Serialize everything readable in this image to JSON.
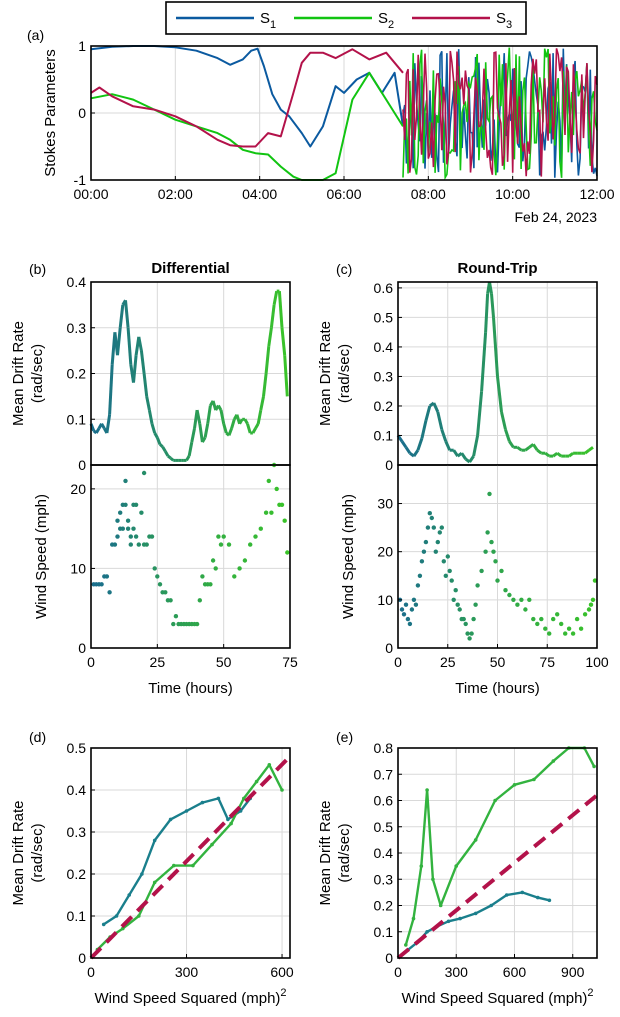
{
  "colors": {
    "s1": "#0b5aa0",
    "s2": "#11c411",
    "s3": "#b3124a",
    "teal": "#1a7f8c",
    "greenish": "#33b33f",
    "fit": "#b3124a",
    "grid": "#d9d9d9"
  },
  "chart_data": [
    {
      "panel_label": "(a)",
      "type": "line",
      "ylabel": "Stokes Parameters",
      "ylim": [
        -1,
        1
      ],
      "yticks": [
        "-1",
        "0",
        "1"
      ],
      "xticks": [
        "00:00",
        "02:00",
        "04:00",
        "06:00",
        "08:00",
        "10:00",
        "12:00"
      ],
      "xnote": "Feb 24, 2023",
      "grid": true,
      "legend": {
        "placement": "top-outside",
        "entries": [
          "S1",
          "S2",
          "S3"
        ],
        "display": [
          [
            "S",
            "1"
          ],
          [
            "S",
            "2"
          ],
          [
            "S",
            "3"
          ]
        ]
      },
      "series": [
        {
          "name": "S1",
          "x": [
            0,
            0.5,
            1,
            1.5,
            2,
            2.5,
            3,
            3.3,
            3.6,
            3.8,
            3.95,
            4.1,
            4.3,
            4.5,
            4.7,
            5,
            5.2,
            5.5,
            5.8,
            6,
            6.3,
            6.6,
            6.9,
            7.2,
            7.4
          ],
          "values": [
            0.95,
            0.99,
            1.0,
            1.0,
            0.98,
            0.93,
            0.82,
            0.72,
            0.8,
            0.93,
            0.96,
            0.7,
            0.28,
            0.05,
            -0.05,
            -0.3,
            -0.5,
            -0.2,
            0.4,
            0.3,
            0.5,
            0.6,
            0.3,
            0.6,
            -0.2
          ]
        },
        {
          "name": "S2",
          "x": [
            0,
            0.5,
            1,
            1.5,
            2,
            2.5,
            3,
            3.3,
            3.6,
            3.9,
            4.2,
            4.5,
            4.8,
            5.0,
            5.2,
            5.5,
            5.8,
            6.2,
            6.6,
            7.0,
            7.4
          ],
          "values": [
            0.22,
            0.28,
            0.2,
            0.05,
            -0.1,
            -0.2,
            -0.3,
            -0.4,
            -0.55,
            -0.6,
            -0.62,
            -0.8,
            -0.95,
            -1.0,
            -1.0,
            -1.0,
            -0.9,
            0.2,
            0.6,
            0.2,
            -0.2
          ]
        },
        {
          "name": "S3",
          "x": [
            0,
            0.2,
            0.5,
            1,
            1.5,
            2,
            2.5,
            3,
            3.3,
            3.6,
            3.9,
            4.2,
            4.5,
            4.8,
            5.0,
            5.2,
            5.5,
            5.8,
            6.2,
            6.6,
            7.0,
            7.4
          ],
          "values": [
            0.3,
            0.38,
            0.25,
            0.1,
            0.05,
            -0.05,
            -0.2,
            -0.4,
            -0.48,
            -0.5,
            -0.5,
            -0.3,
            -0.35,
            0.3,
            0.75,
            0.9,
            0.9,
            0.82,
            0.95,
            0.8,
            0.9,
            0.6
          ]
        }
      ],
      "noisy_segment": {
        "x_start": 7.4,
        "x_end": 12,
        "note": "rapid oscillations of all three parameters between -1 and 1"
      }
    },
    {
      "panel_label": "(b)",
      "type": "line",
      "title": "Differential",
      "ylabel": "Mean Drift Rate (rad/sec)",
      "ylim": [
        0,
        0.4
      ],
      "yticks": [
        "0",
        "0.1",
        "0.2",
        "0.3",
        "0.4"
      ],
      "xlim": [
        0,
        75
      ],
      "grid": true,
      "x": [
        0,
        1,
        2,
        3,
        4,
        5,
        6,
        7,
        8,
        9,
        10,
        11,
        12,
        13,
        14,
        15,
        16,
        17,
        18,
        19,
        20,
        21,
        22,
        23,
        24,
        25,
        26,
        27,
        28,
        29,
        30,
        31,
        32,
        33,
        34,
        35,
        36,
        37,
        38,
        39,
        40,
        41,
        42,
        43,
        44,
        45,
        46,
        47,
        48,
        49,
        50,
        51,
        52,
        53,
        54,
        55,
        56,
        57,
        58,
        59,
        60,
        61,
        62,
        63,
        64,
        65,
        66,
        67,
        68,
        69,
        70,
        71,
        72,
        73,
        74
      ],
      "values": [
        0.09,
        0.075,
        0.07,
        0.08,
        0.09,
        0.08,
        0.07,
        0.11,
        0.22,
        0.29,
        0.24,
        0.3,
        0.35,
        0.36,
        0.3,
        0.22,
        0.18,
        0.24,
        0.28,
        0.25,
        0.2,
        0.15,
        0.12,
        0.09,
        0.07,
        0.06,
        0.045,
        0.04,
        0.03,
        0.02,
        0.015,
        0.01,
        0.01,
        0.01,
        0.01,
        0.01,
        0.01,
        0.02,
        0.05,
        0.08,
        0.12,
        0.09,
        0.05,
        0.06,
        0.09,
        0.13,
        0.14,
        0.12,
        0.13,
        0.12,
        0.09,
        0.07,
        0.065,
        0.08,
        0.1,
        0.11,
        0.09,
        0.1,
        0.1,
        0.09,
        0.07,
        0.07,
        0.08,
        0.09,
        0.12,
        0.15,
        0.2,
        0.26,
        0.3,
        0.35,
        0.38,
        0.38,
        0.3,
        0.24,
        0.15
      ]
    },
    {
      "panel_label": "(b)",
      "type": "scatter",
      "ylabel": "Wind Speed (mph)",
      "xlabel": "Time (hours)",
      "ylim": [
        0,
        23
      ],
      "yticks": [
        "0",
        "10",
        "20"
      ],
      "xlim": [
        0,
        75
      ],
      "xticks": [
        "0",
        "25",
        "50",
        "75"
      ],
      "grid": true,
      "x": [
        1,
        2,
        3,
        4,
        5,
        6,
        7,
        8,
        9,
        10,
        10,
        11,
        11,
        12,
        12,
        13,
        13,
        14,
        14,
        15,
        15,
        16,
        16,
        17,
        17,
        18,
        19,
        20,
        20,
        21,
        22,
        23,
        24,
        25,
        26,
        27,
        28,
        29,
        30,
        31,
        32,
        33,
        34,
        35,
        36,
        37,
        38,
        39,
        40,
        41,
        42,
        43,
        44,
        45,
        46,
        47,
        48,
        49,
        50,
        52,
        54,
        56,
        58,
        60,
        62,
        64,
        66,
        67,
        68,
        69,
        70,
        71,
        72,
        73,
        74
      ],
      "values": [
        8,
        8,
        8,
        8,
        9,
        9,
        7,
        13,
        13,
        14,
        16,
        17,
        15,
        18,
        15,
        21,
        18,
        16,
        15,
        14,
        13,
        18,
        15,
        14,
        18,
        13,
        17,
        22,
        13,
        13,
        14,
        14,
        10,
        9,
        8,
        7,
        7,
        6,
        6,
        3,
        4,
        3,
        3,
        3,
        3,
        3,
        3,
        3,
        3,
        6,
        9,
        8,
        8,
        8,
        11,
        10,
        14,
        13,
        14,
        13,
        9,
        10,
        11,
        13,
        14,
        15,
        17,
        21,
        17,
        23,
        20,
        18,
        18,
        16,
        12
      ]
    },
    {
      "panel_label": "(c)",
      "type": "line",
      "title": "Round-Trip",
      "ylabel": "Mean Drift Rate (rad/sec)",
      "ylim": [
        0,
        0.62
      ],
      "yticks": [
        "0",
        "0.1",
        "0.2",
        "0.3",
        "0.4",
        "0.5",
        "0.6"
      ],
      "xlim": [
        0,
        100
      ],
      "grid": true,
      "x": [
        0,
        2,
        4,
        6,
        8,
        10,
        12,
        14,
        16,
        18,
        20,
        22,
        24,
        26,
        28,
        30,
        32,
        34,
        36,
        38,
        40,
        42,
        44,
        45,
        46,
        47,
        48,
        50,
        52,
        54,
        56,
        58,
        60,
        62,
        64,
        66,
        68,
        70,
        72,
        74,
        76,
        78,
        80,
        82,
        84,
        86,
        88,
        90,
        92,
        94,
        96,
        98
      ],
      "values": [
        0.1,
        0.08,
        0.06,
        0.04,
        0.03,
        0.05,
        0.09,
        0.15,
        0.2,
        0.21,
        0.18,
        0.12,
        0.08,
        0.05,
        0.05,
        0.03,
        0.04,
        0.02,
        0.01,
        0.03,
        0.1,
        0.25,
        0.45,
        0.58,
        0.62,
        0.58,
        0.5,
        0.3,
        0.18,
        0.12,
        0.08,
        0.06,
        0.06,
        0.05,
        0.05,
        0.06,
        0.07,
        0.05,
        0.04,
        0.04,
        0.03,
        0.03,
        0.04,
        0.03,
        0.03,
        0.03,
        0.04,
        0.04,
        0.04,
        0.04,
        0.05,
        0.06
      ]
    },
    {
      "panel_label": "(c)",
      "type": "scatter",
      "ylabel": "Wind Speed (mph)",
      "xlabel": "Time (hours)",
      "ylim": [
        0,
        38
      ],
      "yticks": [
        "0",
        "10",
        "20",
        "30"
      ],
      "xlim": [
        0,
        100
      ],
      "xticks": [
        "0",
        "25",
        "50",
        "75",
        "100"
      ],
      "grid": true,
      "x": [
        1,
        2,
        3,
        4,
        5,
        6,
        7,
        8,
        9,
        10,
        11,
        12,
        13,
        14,
        15,
        16,
        17,
        18,
        19,
        20,
        21,
        22,
        23,
        24,
        25,
        26,
        27,
        28,
        29,
        30,
        31,
        32,
        33,
        34,
        35,
        36,
        37,
        38,
        39,
        40,
        42,
        44,
        45,
        46,
        47,
        48,
        49,
        50,
        52,
        54,
        56,
        58,
        60,
        62,
        64,
        66,
        68,
        70,
        72,
        74,
        76,
        78,
        80,
        82,
        84,
        86,
        88,
        90,
        92,
        94,
        96,
        97,
        98,
        99
      ],
      "values": [
        10,
        8,
        7,
        9,
        6,
        5,
        8,
        10,
        9,
        13,
        15,
        18,
        20,
        22,
        25,
        28,
        27,
        25,
        20,
        22,
        24,
        25,
        18,
        15,
        19,
        16,
        14,
        10,
        12,
        9,
        8,
        6,
        6,
        5,
        3,
        2,
        3,
        6,
        9,
        13,
        16,
        20,
        24,
        32,
        22,
        20,
        18,
        14,
        16,
        12,
        11,
        10,
        9,
        10,
        8,
        10,
        6,
        5,
        6,
        4,
        3,
        6,
        7,
        5,
        3,
        4,
        3,
        6,
        4,
        7,
        8,
        9,
        10,
        14
      ]
    },
    {
      "panel_label": "(d)",
      "type": "scatter",
      "ylabel": "Mean Drift Rate (rad/sec)",
      "xlabel": "Wind Speed Squared (mph)",
      "xlabel_sup": "2",
      "ylim": [
        0,
        0.5
      ],
      "yticks": [
        "0",
        "0.1",
        "0.2",
        "0.3",
        "0.4",
        "0.5"
      ],
      "xlim": [
        0,
        625
      ],
      "xticks": [
        "0",
        "300",
        "600"
      ],
      "grid": true,
      "fit_line": {
        "x": [
          0,
          625
        ],
        "values": [
          0,
          0.48
        ]
      },
      "series": [
        {
          "name": "",
          "x": [
            40,
            80,
            120,
            160,
            200,
            250,
            300,
            350,
            400,
            430,
            470,
            500
          ],
          "values": [
            0.08,
            0.1,
            0.15,
            0.2,
            0.28,
            0.33,
            0.35,
            0.37,
            0.38,
            0.33,
            0.35,
            0.38
          ]
        },
        {
          "name": "",
          "x": [
            20,
            60,
            100,
            150,
            200,
            260,
            320,
            380,
            440,
            480,
            520,
            560,
            600
          ],
          "values": [
            0.02,
            0.05,
            0.07,
            0.1,
            0.18,
            0.22,
            0.22,
            0.27,
            0.32,
            0.38,
            0.42,
            0.46,
            0.4
          ]
        }
      ]
    },
    {
      "panel_label": "(e)",
      "type": "scatter",
      "ylabel": "Mean Drift Rate (rad/sec)",
      "xlabel": "Wind Speed Squared (mph)",
      "xlabel_sup": "2",
      "ylim": [
        0,
        0.8
      ],
      "yticks": [
        "0",
        "0.1",
        "0.2",
        "0.3",
        "0.4",
        "0.5",
        "0.6",
        "0.7",
        "0.8"
      ],
      "xlim": [
        0,
        1025
      ],
      "xticks": [
        "0",
        "300",
        "600",
        "900"
      ],
      "grid": true,
      "fit_line": {
        "x": [
          0,
          1025
        ],
        "values": [
          0,
          0.62
        ]
      },
      "series": [
        {
          "name": "",
          "x": [
            50,
            100,
            150,
            200,
            260,
            320,
            400,
            480,
            560,
            640,
            720,
            780
          ],
          "values": [
            0.03,
            0.06,
            0.1,
            0.12,
            0.14,
            0.15,
            0.17,
            0.2,
            0.24,
            0.25,
            0.23,
            0.22
          ]
        },
        {
          "name": "",
          "x": [
            40,
            80,
            120,
            150,
            180,
            220,
            300,
            400,
            500,
            600,
            700,
            800,
            880,
            960,
            1010
          ],
          "values": [
            0.05,
            0.15,
            0.35,
            0.64,
            0.3,
            0.2,
            0.35,
            0.45,
            0.6,
            0.66,
            0.68,
            0.75,
            0.8,
            0.8,
            0.73
          ]
        }
      ]
    }
  ]
}
